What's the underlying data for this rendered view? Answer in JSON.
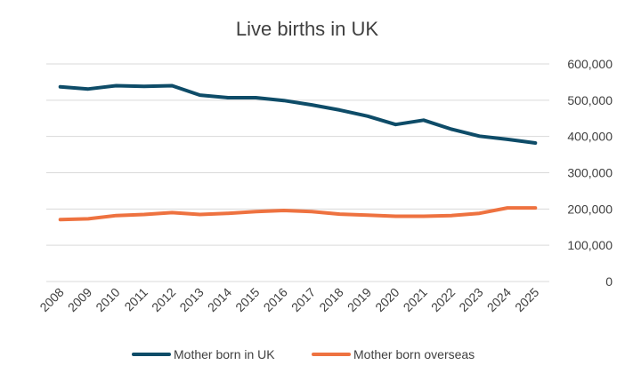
{
  "chart_data": {
    "type": "line",
    "title": "Live births in UK",
    "xlabel": "",
    "ylabel": "",
    "categories": [
      "2008",
      "2009",
      "2010",
      "2011",
      "2012",
      "2013",
      "2014",
      "2015",
      "2016",
      "2017",
      "2018",
      "2019",
      "2020",
      "2021",
      "2022",
      "2023",
      "2024",
      "2025"
    ],
    "ylim": [
      0,
      600000
    ],
    "yticks": [
      {
        "value": 0,
        "label": "0"
      },
      {
        "value": 100000,
        "label": "100,000"
      },
      {
        "value": 200000,
        "label": "200,000"
      },
      {
        "value": 300000,
        "label": "300,000"
      },
      {
        "value": 400000,
        "label": "400,000"
      },
      {
        "value": 500000,
        "label": "500,000"
      },
      {
        "value": 600000,
        "label": "600,000"
      }
    ],
    "grid": true,
    "y_axis_side": "right",
    "legend_position": "bottom",
    "series": [
      {
        "name": "Mother born in UK",
        "color": "#0e4c68",
        "values": [
          537000,
          531000,
          540000,
          538000,
          540000,
          514000,
          507000,
          507000,
          499000,
          487000,
          473000,
          456000,
          433000,
          445000,
          420000,
          401000,
          392000,
          382000
        ]
      },
      {
        "name": "Mother born overseas",
        "color": "#ee7240",
        "values": [
          171000,
          173000,
          182000,
          185000,
          190000,
          185000,
          188000,
          193000,
          196000,
          193000,
          186000,
          183000,
          180000,
          180000,
          182000,
          188000,
          203000,
          203000
        ]
      }
    ]
  }
}
